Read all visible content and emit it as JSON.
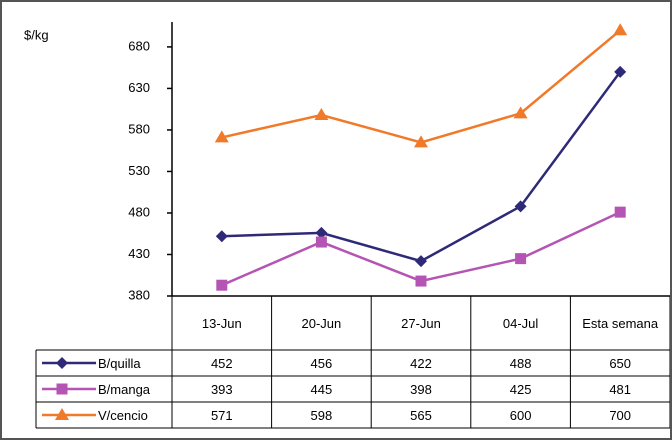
{
  "chart_data": {
    "type": "line",
    "y_label": "$/kg",
    "categories": [
      "13-Jun",
      "20-Jun",
      "27-Jun",
      "04-Jul",
      "Esta semana"
    ],
    "series": [
      {
        "name": "B/quilla",
        "color": "#2e2a78",
        "marker": "diamond",
        "values": [
          452,
          456,
          422,
          488,
          650
        ]
      },
      {
        "name": "B/manga",
        "color": "#b455b4",
        "marker": "square",
        "values": [
          393,
          445,
          398,
          425,
          481
        ]
      },
      {
        "name": "V/cencio",
        "color": "#f07a2a",
        "marker": "triangle",
        "values": [
          571,
          598,
          565,
          600,
          700
        ]
      }
    ],
    "ylim": [
      380,
      710
    ],
    "yticks": [
      380,
      430,
      480,
      530,
      580,
      630,
      680
    ]
  }
}
